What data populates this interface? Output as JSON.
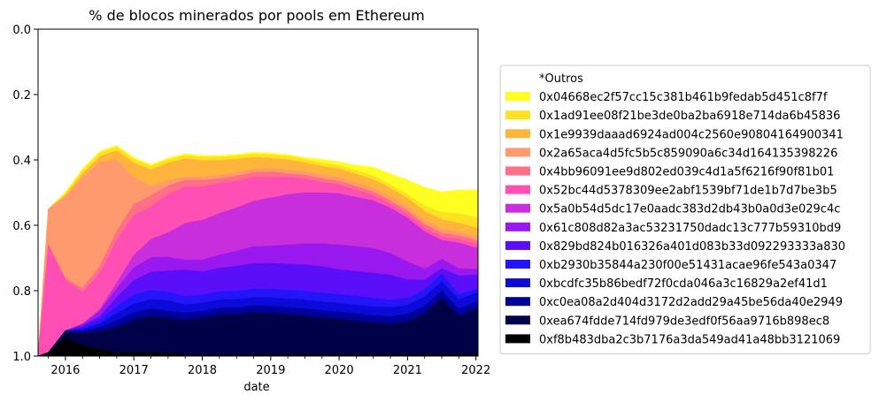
{
  "chart_data": {
    "type": "area",
    "title": "% de blocos minerados por pools em Ethereum",
    "xlabel": "date",
    "ylabel": "",
    "y_inverted": true,
    "ylim": [
      0.0,
      1.0
    ],
    "y_ticks": [
      "0.0",
      "0.2",
      "0.4",
      "0.6",
      "0.8",
      "1.0"
    ],
    "y_tick_values": [
      0.0,
      0.2,
      0.4,
      0.6,
      0.8,
      1.0
    ],
    "xlim": [
      2015.6,
      2022.03
    ],
    "x_ticks": [
      "2016",
      "2017",
      "2018",
      "2019",
      "2020",
      "2021",
      "2022"
    ],
    "x_tick_values": [
      2016,
      2017,
      2018,
      2019,
      2020,
      2021,
      2022
    ],
    "x": [
      2015.6,
      2015.75,
      2016.0,
      2016.25,
      2016.5,
      2016.75,
      2017.0,
      2017.25,
      2017.5,
      2017.75,
      2018.0,
      2018.25,
      2018.5,
      2018.75,
      2019.0,
      2019.25,
      2019.5,
      2019.75,
      2020.0,
      2020.25,
      2020.5,
      2020.75,
      2021.0,
      2021.25,
      2021.5,
      2021.75,
      2022.0,
      2022.03
    ],
    "legend_position": "right",
    "grid": false,
    "series": [
      {
        "name": "*Outros",
        "color": "#ffffff",
        "values": [
          1.0,
          1.0,
          0.96,
          0.78,
          0.68,
          0.65,
          0.71,
          0.74,
          0.74,
          0.75,
          0.76,
          0.76,
          0.75,
          0.73,
          0.72,
          0.72,
          0.73,
          0.74,
          0.75,
          0.77,
          0.78,
          0.8,
          0.83,
          0.85,
          0.87,
          0.88,
          0.89,
          0.89
        ]
      },
      {
        "name": "0x04668ec2f57cc15c381b461b9fedab5d451c8f7f",
        "color": "#ffff22",
        "values": [
          0,
          0,
          0.01,
          0.01,
          0.01,
          0.01,
          0.01,
          0.01,
          0.01,
          0.01,
          0.01,
          0.01,
          0.01,
          0.01,
          0.01,
          0.01,
          0.01,
          0.02,
          0.02,
          0.03,
          0.05,
          0.06,
          0.08,
          0.1,
          0.11,
          0.13,
          0.15,
          0.15
        ]
      },
      {
        "name": "0x1ad91ee08f21be3de0ba2ba6918e714da6b45836",
        "color": "#ffe21f",
        "values": [
          0,
          0,
          0.01,
          0.02,
          0.02,
          0.02,
          0.02,
          0.02,
          0.02,
          0.02,
          0.02,
          0.02,
          0.02,
          0.02,
          0.02,
          0.02,
          0.02,
          0.02,
          0.02,
          0.02,
          0.02,
          0.02,
          0.02,
          0.03,
          0.04,
          0.05,
          0.06,
          0.06
        ]
      },
      {
        "name": "0x1e9939daaad6924ad004c2560e90804164900341",
        "color": "#ffb43c",
        "values": [
          0,
          0,
          0.01,
          0.02,
          0.03,
          0.05,
          0.08,
          0.09,
          0.1,
          0.11,
          0.1,
          0.09,
          0.08,
          0.07,
          0.06,
          0.06,
          0.05,
          0.05,
          0.05,
          0.05,
          0.05,
          0.05,
          0.05,
          0.05,
          0.05,
          0.05,
          0.05,
          0.05
        ]
      },
      {
        "name": "0x2a65aca4d5fc5b5c859090a6c34d164135398226",
        "color": "#ff9a6e",
        "values": [
          0,
          0.2,
          0.48,
          0.62,
          0.58,
          0.4,
          0.15,
          0.05,
          0.03,
          0.02,
          0.02,
          0.02,
          0.02,
          0.02,
          0.02,
          0.02,
          0.02,
          0.02,
          0.02,
          0.02,
          0.02,
          0.02,
          0.02,
          0.02,
          0.02,
          0.02,
          0.02,
          0.02
        ]
      },
      {
        "name": "0x4bb96091ee9d802ed039c4d1a5f6216f90f81b01",
        "color": "#ff7088",
        "values": [
          0,
          0,
          0.01,
          0.02,
          0.04,
          0.05,
          0.06,
          0.06,
          0.05,
          0.04,
          0.04,
          0.03,
          0.03,
          0.03,
          0.03,
          0.02,
          0.02,
          0.02,
          0.02,
          0.02,
          0.02,
          0.02,
          0.02,
          0.02,
          0.02,
          0.02,
          0.02,
          0.02
        ]
      },
      {
        "name": "0x52bc44d5378309ee2abf1539bf71de1b7d7be3b5",
        "color": "#ff4fb4",
        "values": [
          0,
          0.6,
          0.3,
          0.18,
          0.2,
          0.24,
          0.22,
          0.18,
          0.22,
          0.22,
          0.2,
          0.18,
          0.16,
          0.14,
          0.12,
          0.1,
          0.08,
          0.06,
          0.05,
          0.04,
          0.03,
          0.02,
          0.02,
          0.02,
          0.02,
          0.02,
          0.02,
          0.02
        ]
      },
      {
        "name": "0x5a0b54d5dc17e0aadc383d2db43b0a0d3e029c4c",
        "color": "#c82edc",
        "values": [
          0,
          0,
          0,
          0,
          0.01,
          0.03,
          0.07,
          0.1,
          0.14,
          0.22,
          0.24,
          0.25,
          0.26,
          0.27,
          0.28,
          0.29,
          0.29,
          0.29,
          0.29,
          0.28,
          0.27,
          0.25,
          0.24,
          0.2,
          0.1,
          0.14,
          0.12,
          0.12
        ]
      },
      {
        "name": "0x61c808d82a3ac53231750dadc13c777b59310bd9",
        "color": "#9a18f0",
        "values": [
          0,
          0,
          0,
          0.01,
          0.03,
          0.05,
          0.07,
          0.08,
          0.08,
          0.06,
          0.07,
          0.08,
          0.09,
          0.1,
          0.1,
          0.11,
          0.12,
          0.13,
          0.14,
          0.14,
          0.14,
          0.12,
          0.1,
          0.06,
          0.05,
          0.04,
          0.03,
          0.03
        ]
      },
      {
        "name": "0x829bd824b016326a401d083b33d092293333a830",
        "color": "#5b0ef8",
        "values": [
          0,
          0,
          0,
          0.01,
          0.02,
          0.05,
          0.08,
          0.1,
          0.12,
          0.16,
          0.14,
          0.14,
          0.15,
          0.15,
          0.15,
          0.15,
          0.15,
          0.15,
          0.14,
          0.14,
          0.14,
          0.14,
          0.1,
          0.05,
          0.03,
          0.1,
          0.08,
          0.08
        ]
      },
      {
        "name": "0xb2930b35844a230f00e51431acae96fe543a0347",
        "color": "#2414f8",
        "values": [
          0,
          0,
          0,
          0.01,
          0.02,
          0.04,
          0.05,
          0.05,
          0.05,
          0.05,
          0.05,
          0.05,
          0.05,
          0.05,
          0.05,
          0.05,
          0.05,
          0.05,
          0.05,
          0.05,
          0.05,
          0.04,
          0.04,
          0.04,
          0.04,
          0.03,
          0.02,
          0.02
        ]
      },
      {
        "name": "0xbcdfc35b86bedf72f0cda046a3c16829a2ef41d1",
        "color": "#0c0ad8",
        "values": [
          0,
          0,
          0,
          0.01,
          0.02,
          0.04,
          0.05,
          0.05,
          0.06,
          0.05,
          0.05,
          0.05,
          0.05,
          0.05,
          0.05,
          0.05,
          0.05,
          0.05,
          0.05,
          0.05,
          0.05,
          0.05,
          0.05,
          0.05,
          0.05,
          0.05,
          0.05,
          0.05
        ]
      },
      {
        "name": "0xc0ea08a2d404d3172d2add29a45be56da40e2949",
        "color": "#00009a",
        "values": [
          0,
          0,
          0,
          0.01,
          0.02,
          0.04,
          0.04,
          0.04,
          0.04,
          0.04,
          0.04,
          0.04,
          0.04,
          0.04,
          0.04,
          0.04,
          0.04,
          0.04,
          0.04,
          0.04,
          0.04,
          0.04,
          0.04,
          0.04,
          0.04,
          0.04,
          0.04,
          0.04
        ]
      },
      {
        "name": "0xea674fdde714fd979de3edf0f56aa9716b898ec8",
        "color": "#000048",
        "values": [
          0,
          0,
          0.04,
          0.07,
          0.1,
          0.14,
          0.18,
          0.2,
          0.2,
          0.21,
          0.22,
          0.24,
          0.24,
          0.25,
          0.24,
          0.23,
          0.22,
          0.21,
          0.2,
          0.19,
          0.18,
          0.17,
          0.18,
          0.22,
          0.3,
          0.21,
          0.25,
          0.25
        ]
      },
      {
        "name": "0xf8b483dba2c3b7176a3da549ad41a48bb3121069",
        "color": "#000000",
        "values": [
          0,
          0.02,
          0.11,
          0.06,
          0.04,
          0.02,
          0.02,
          0.02,
          0.02,
          0.01,
          0.01,
          0.01,
          0.01,
          0.01,
          0.01,
          0.01,
          0.01,
          0.01,
          0.01,
          0.01,
          0.01,
          0.01,
          0.01,
          0.01,
          0.01,
          0.01,
          0.01,
          0.01
        ]
      }
    ]
  }
}
